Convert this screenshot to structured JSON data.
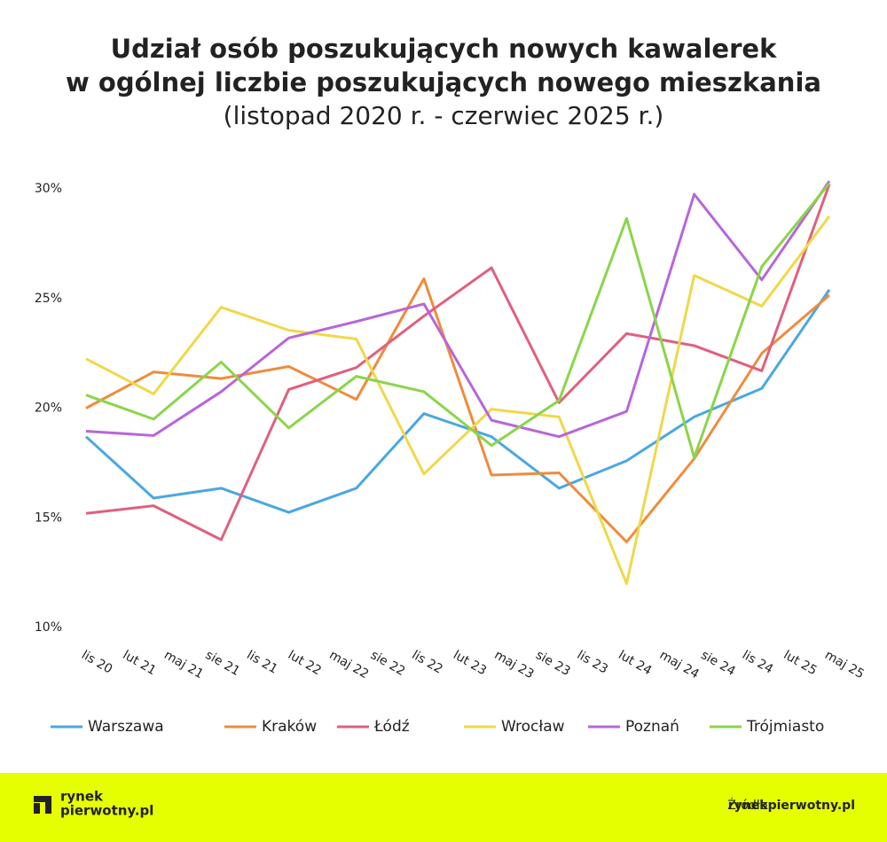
{
  "chart_data": {
    "type": "line",
    "title": [
      "Udział osób poszukujących nowych kawalerek",
      "w ogólnej liczbie poszukujących nowego mieszkania"
    ],
    "subtitle": "(listopad 2020 r. - czerwiec 2025 r.)",
    "xtick_labels": [
      "lis 20",
      "lut 21",
      "maj 21",
      "sie 21",
      "lis 21",
      "lut 22",
      "maj 22",
      "sie 22",
      "lis 22",
      "lut 23",
      "maj 23",
      "sie 23",
      "lis 23",
      "lut 24",
      "maj 24",
      "sie 24",
      "lis 24",
      "lut 25",
      "maj 25"
    ],
    "ylim": [
      10,
      30
    ],
    "yticks": [
      {
        "value": 10,
        "label": "10%"
      },
      {
        "value": 15,
        "label": "15%"
      },
      {
        "value": 20,
        "label": "20%"
      },
      {
        "value": 25,
        "label": "25%"
      },
      {
        "value": 30,
        "label": "30%"
      }
    ],
    "grid": false,
    "legend": "bottom",
    "series": [
      {
        "name": "Warszawa",
        "color": "#4aa8e0",
        "values": [
          18.7,
          15.9,
          16.35,
          15.25,
          16.35,
          19.75,
          18.7,
          16.35,
          17.6,
          19.6,
          20.9,
          25.4
        ]
      },
      {
        "name": "Kraków",
        "color": "#ef8c3c",
        "values": [
          20.0,
          21.65,
          21.35,
          21.9,
          20.4,
          25.9,
          16.95,
          17.05,
          13.9,
          17.7,
          22.5,
          25.15
        ]
      },
      {
        "name": "Łódź",
        "color": "#e0607e",
        "values": [
          15.2,
          15.55,
          14.0,
          20.85,
          21.85,
          24.2,
          26.4,
          20.25,
          23.4,
          22.85,
          21.7,
          30.2
        ]
      },
      {
        "name": "Wrocław",
        "color": "#f0d84a",
        "values": [
          22.25,
          20.65,
          24.6,
          23.55,
          23.15,
          17.0,
          19.95,
          19.6,
          12.0,
          26.05,
          24.65,
          28.75
        ]
      },
      {
        "name": "Poznań",
        "color": "#b866d9",
        "values": [
          18.95,
          18.75,
          20.75,
          23.2,
          23.95,
          24.75,
          19.45,
          18.7,
          19.85,
          29.75,
          25.85,
          30.35
        ]
      },
      {
        "name": "Trójmiasto",
        "color": "#8ad54a",
        "values": [
          20.6,
          19.5,
          22.1,
          19.1,
          21.45,
          20.75,
          18.3,
          20.35,
          28.65,
          17.75,
          26.45,
          30.25
        ]
      }
    ]
  },
  "footer": {
    "logo": [
      "rynek",
      "pierwotny.pl"
    ],
    "source_label": "Źródło:",
    "source_value": "rynekpierwotny.pl"
  }
}
